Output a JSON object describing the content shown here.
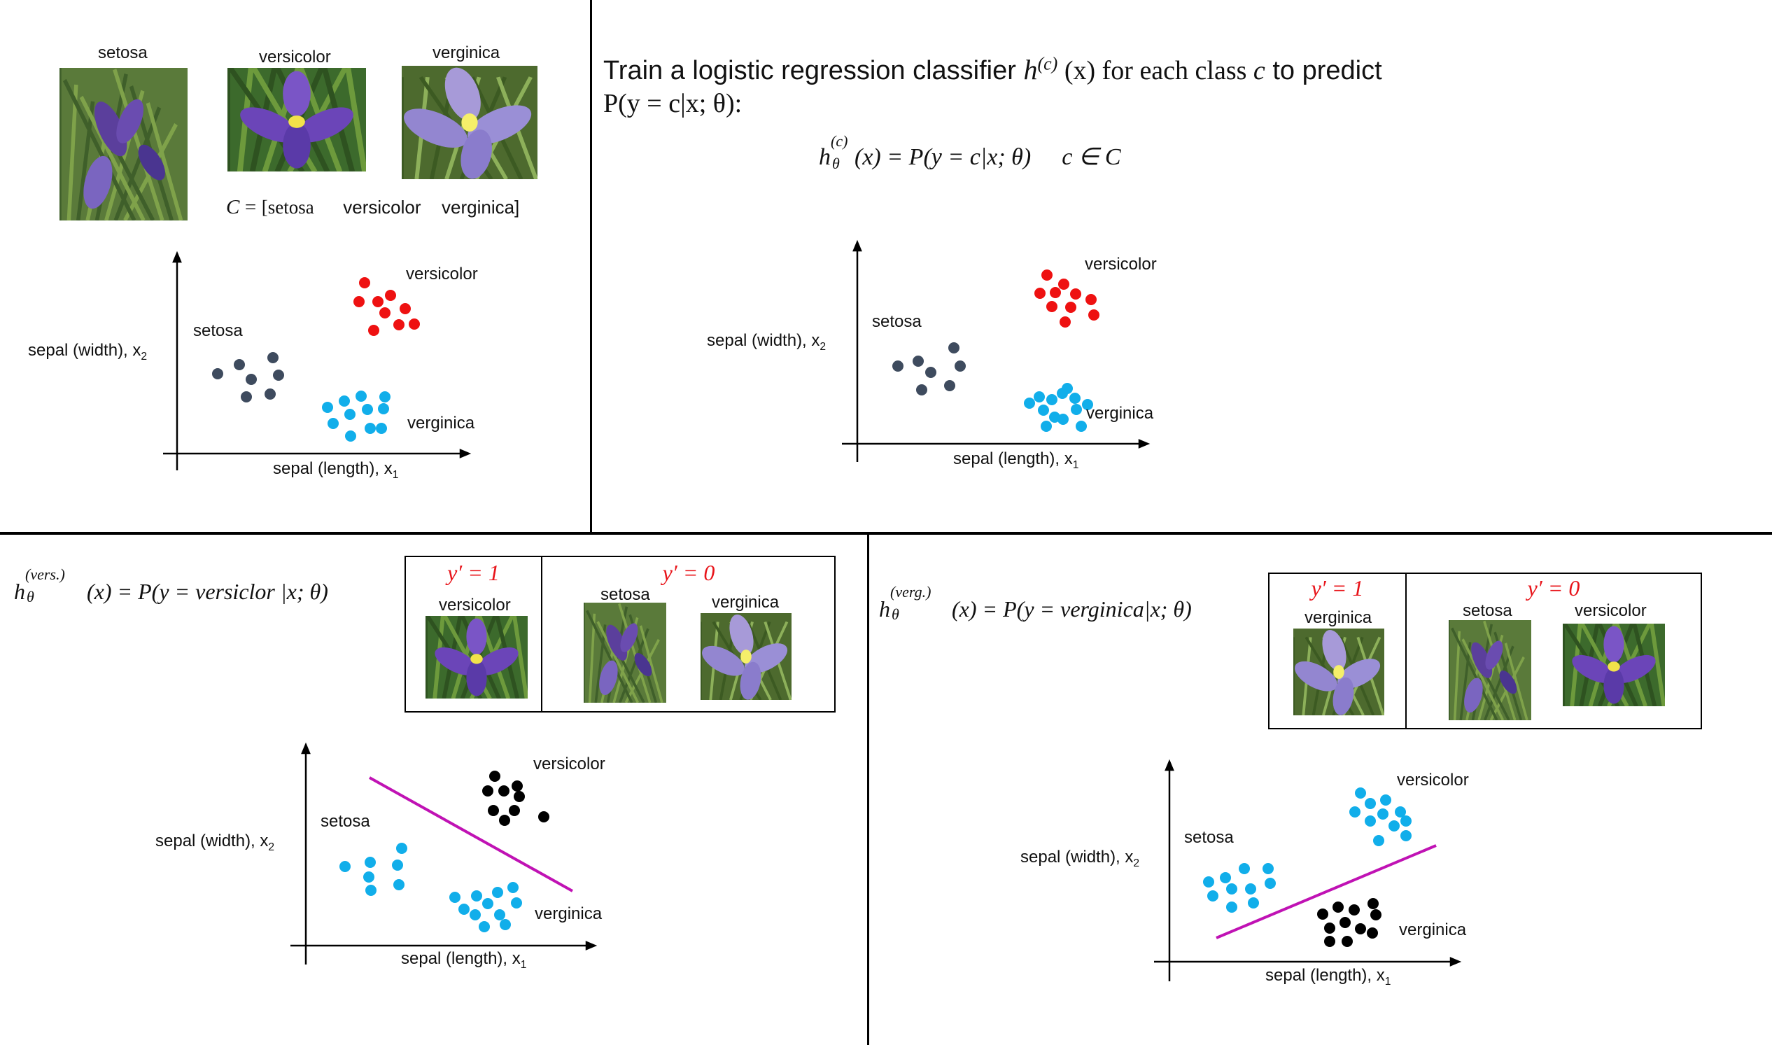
{
  "classes": [
    "setosa",
    "versicolor",
    "verginica"
  ],
  "class_set": {
    "lhs": "C",
    "eq": "=",
    "items": [
      "[setosa",
      "versicolor",
      "verginica]"
    ]
  },
  "top_right": {
    "title_line1_a": "Train a logistic regression classifier ",
    "title_h": "h",
    "title_sup": "(c)",
    "title_line1_b": " (x) for each class ",
    "title_c": "c",
    "title_line1_c": " to predict",
    "title_line2": "P(y = c|x; θ):",
    "formula": "h_θ^(c)(x) = P(y = c|x; θ)    c ∈ C",
    "formula_parts": {
      "h": "h",
      "sup": "(c)",
      "sub": "θ",
      "rest": "(x) = P(y = c|x; θ)",
      "member": "c ∈ C"
    }
  },
  "axes": {
    "ylabel": "sepal (width), x",
    "ylabel_sub": "2",
    "xlabel": "sepal (length), x",
    "xlabel_sub": "1"
  },
  "bottom_left": {
    "h": "h",
    "sup": "(vers.)",
    "sub": "θ",
    "rest_a": "(x) = P(y = versiclor |x; θ)",
    "pos_label": "y′ = 1",
    "neg_label": "y′ = 0",
    "pos_classes": [
      "versicolor"
    ],
    "neg_classes": [
      "setosa",
      "verginica"
    ]
  },
  "bottom_right": {
    "h": "h",
    "sup": "(verg.)",
    "sub": "θ",
    "rest_a": "(x) = P(y = verginica|x; θ)",
    "pos_label": "y′ = 1",
    "neg_label": "y′ = 0",
    "pos_classes": [
      "verginica"
    ],
    "neg_classes": [
      "setosa",
      "versicolor"
    ]
  },
  "colors": {
    "setosa": "#3e4b5e",
    "versicolor": "#ee1111",
    "verginica": "#11aeea",
    "negative": "#000000",
    "positive_ovr": "#11aeea",
    "boundary": "#c012b4",
    "red_label": "#e8141a"
  },
  "icons": [
    "iris-photo-setosa",
    "iris-photo-versicolor",
    "iris-photo-verginica"
  ]
}
